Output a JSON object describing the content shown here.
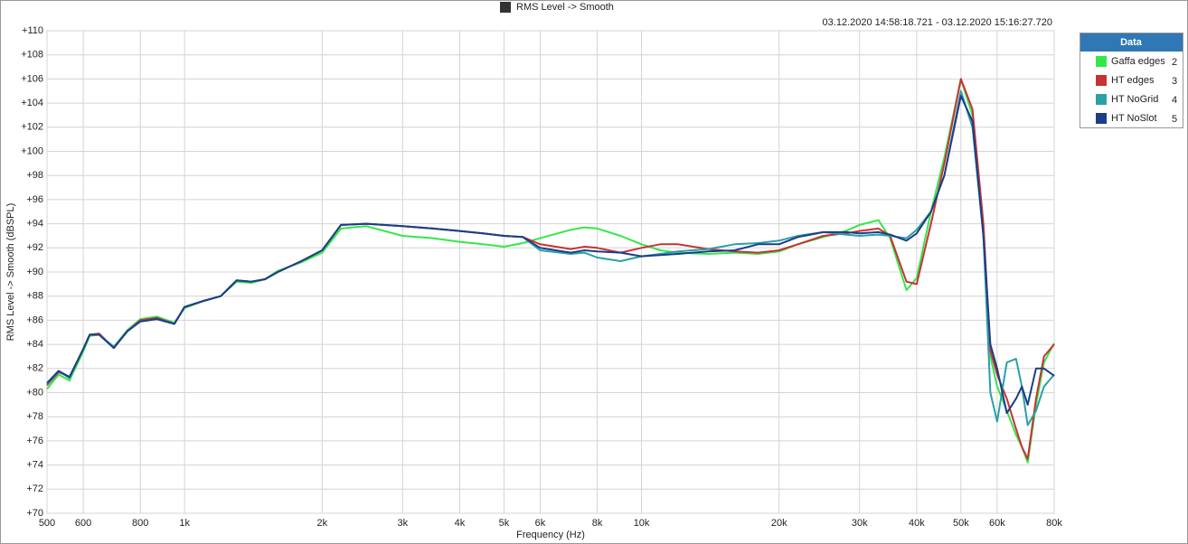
{
  "chart_data": {
    "type": "line",
    "title": "RMS Level -> Smooth",
    "subtitle": "03.12.2020 14:58:18.721 - 03.12.2020 15:16:27.720",
    "x_label": "Frequency (Hz)",
    "y_label": "RMS Level -> Smooth (dBSPL)",
    "legend_title": "Data",
    "legend_position": "right",
    "log_x": true,
    "grid": true,
    "x": [
      500,
      530,
      560,
      600,
      620,
      650,
      700,
      750,
      800,
      870,
      950,
      1000,
      1100,
      1200,
      1300,
      1400,
      1500,
      1600,
      1800,
      2000,
      2200,
      2500,
      3000,
      3500,
      4000,
      4500,
      5000,
      5500,
      6000,
      7000,
      7500,
      8000,
      9000,
      10000,
      11000,
      12000,
      14000,
      16000,
      18000,
      20000,
      22000,
      25000,
      28000,
      30000,
      33000,
      35000,
      38000,
      40000,
      43000,
      46000,
      50000,
      53000,
      56000,
      58000,
      60000,
      63000,
      66000,
      68000,
      70000,
      73000,
      76000,
      80000
    ],
    "series": [
      {
        "name": "Gaffa edges",
        "legend_index": 2,
        "color": "#33e84a",
        "values": [
          80.3,
          81.5,
          81.0,
          83.4,
          84.7,
          84.8,
          83.8,
          85.2,
          86.1,
          86.3,
          85.8,
          87.0,
          87.6,
          88.0,
          89.2,
          89.1,
          89.4,
          90.1,
          90.8,
          91.6,
          93.6,
          93.8,
          93.0,
          92.8,
          92.5,
          92.3,
          92.1,
          92.4,
          92.8,
          93.5,
          93.7,
          93.6,
          93.0,
          92.3,
          91.8,
          91.6,
          91.5,
          91.6,
          91.5,
          91.7,
          92.3,
          92.9,
          93.4,
          93.9,
          94.3,
          92.8,
          88.5,
          89.5,
          95.0,
          99.5,
          106.0,
          103.0,
          93.0,
          83.0,
          80.5,
          78.5,
          76.5,
          75.5,
          74.2,
          79.0,
          82.5,
          84.1
        ]
      },
      {
        "name": "HT edges",
        "legend_index": 3,
        "color": "#c83232",
        "values": [
          80.6,
          81.7,
          81.3,
          83.6,
          84.8,
          84.9,
          83.7,
          85.1,
          86.0,
          86.2,
          85.7,
          87.1,
          87.6,
          88.0,
          89.3,
          89.2,
          89.4,
          90.0,
          90.9,
          91.8,
          93.9,
          94.0,
          93.8,
          93.6,
          93.4,
          93.2,
          93.0,
          92.9,
          92.3,
          91.9,
          92.1,
          92.0,
          91.6,
          92.0,
          92.3,
          92.3,
          91.9,
          91.7,
          91.6,
          91.8,
          92.3,
          93.0,
          93.2,
          93.4,
          93.6,
          93.0,
          89.2,
          89.0,
          94.0,
          99.0,
          106.0,
          103.5,
          94.0,
          83.5,
          81.5,
          79.5,
          77.0,
          75.5,
          74.5,
          79.5,
          83.0,
          84.0
        ]
      },
      {
        "name": "HT NoGrid",
        "legend_index": 4,
        "color": "#2aa0a8",
        "values": [
          80.7,
          81.8,
          81.2,
          83.6,
          84.8,
          84.8,
          83.8,
          85.1,
          85.9,
          86.1,
          85.7,
          87.1,
          87.6,
          88.0,
          89.3,
          89.2,
          89.4,
          90.0,
          90.9,
          91.8,
          93.9,
          94.0,
          93.8,
          93.6,
          93.4,
          93.2,
          93.0,
          92.9,
          91.8,
          91.5,
          91.6,
          91.2,
          90.9,
          91.3,
          91.5,
          91.7,
          91.9,
          92.3,
          92.4,
          92.6,
          93.0,
          93.3,
          93.1,
          93.0,
          93.1,
          93.0,
          92.8,
          93.5,
          95.0,
          98.0,
          105.0,
          102.0,
          93.0,
          80.0,
          77.6,
          82.5,
          82.8,
          80.5,
          77.3,
          78.5,
          80.5,
          81.5
        ]
      },
      {
        "name": "HT NoSlot",
        "legend_index": 5,
        "color": "#1f3c88",
        "values": [
          80.8,
          81.8,
          81.3,
          83.6,
          84.8,
          84.8,
          83.7,
          85.1,
          85.9,
          86.1,
          85.7,
          87.1,
          87.6,
          88.0,
          89.3,
          89.2,
          89.4,
          90.0,
          90.9,
          91.8,
          93.9,
          94.0,
          93.8,
          93.6,
          93.4,
          93.2,
          93.0,
          92.9,
          92.0,
          91.6,
          91.8,
          91.7,
          91.6,
          91.3,
          91.4,
          91.5,
          91.7,
          91.8,
          92.3,
          92.3,
          92.9,
          93.3,
          93.3,
          93.2,
          93.3,
          93.1,
          92.6,
          93.2,
          95.0,
          98.0,
          104.6,
          102.5,
          93.0,
          84.0,
          82.0,
          78.3,
          79.5,
          80.5,
          79.0,
          82.0,
          82.0,
          81.4
        ]
      }
    ],
    "xlim": [
      500,
      80000
    ],
    "xticks": [
      500,
      600,
      800,
      {
        "value": 1000,
        "label": "1k"
      },
      {
        "value": 2000,
        "label": "2k"
      },
      {
        "value": 3000,
        "label": "3k"
      },
      {
        "value": 4000,
        "label": "4k"
      },
      {
        "value": 5000,
        "label": "5k"
      },
      {
        "value": 6000,
        "label": "6k"
      },
      {
        "value": 8000,
        "label": "8k"
      },
      {
        "value": 10000,
        "label": "10k"
      },
      {
        "value": 20000,
        "label": "20k"
      },
      {
        "value": 30000,
        "label": "30k"
      },
      {
        "value": 40000,
        "label": "40k"
      },
      {
        "value": 50000,
        "label": "50k"
      },
      {
        "value": 60000,
        "label": "60k"
      },
      {
        "value": 80000,
        "label": "80k"
      }
    ],
    "ylim": [
      70,
      110
    ],
    "yticks": [
      {
        "value": 70,
        "label": "+70"
      },
      {
        "value": 72,
        "label": "+72"
      },
      {
        "value": 74,
        "label": "+74"
      },
      {
        "value": 76,
        "label": "+76"
      },
      {
        "value": 78,
        "label": "+78"
      },
      {
        "value": 80,
        "label": "+80"
      },
      {
        "value": 82,
        "label": "+82"
      },
      {
        "value": 84,
        "label": "+84"
      },
      {
        "value": 86,
        "label": "+86"
      },
      {
        "value": 88,
        "label": "+88"
      },
      {
        "value": 90,
        "label": "+90"
      },
      {
        "value": 92,
        "label": "+92"
      },
      {
        "value": 94,
        "label": "+94"
      },
      {
        "value": 96,
        "label": "+96"
      },
      {
        "value": 98,
        "label": "+98"
      },
      {
        "value": 100,
        "label": "+100"
      },
      {
        "value": 102,
        "label": "+102"
      },
      {
        "value": 104,
        "label": "+104"
      },
      {
        "value": 106,
        "label": "+106"
      },
      {
        "value": 108,
        "label": "+108"
      },
      {
        "value": 110,
        "label": "+110"
      }
    ]
  }
}
